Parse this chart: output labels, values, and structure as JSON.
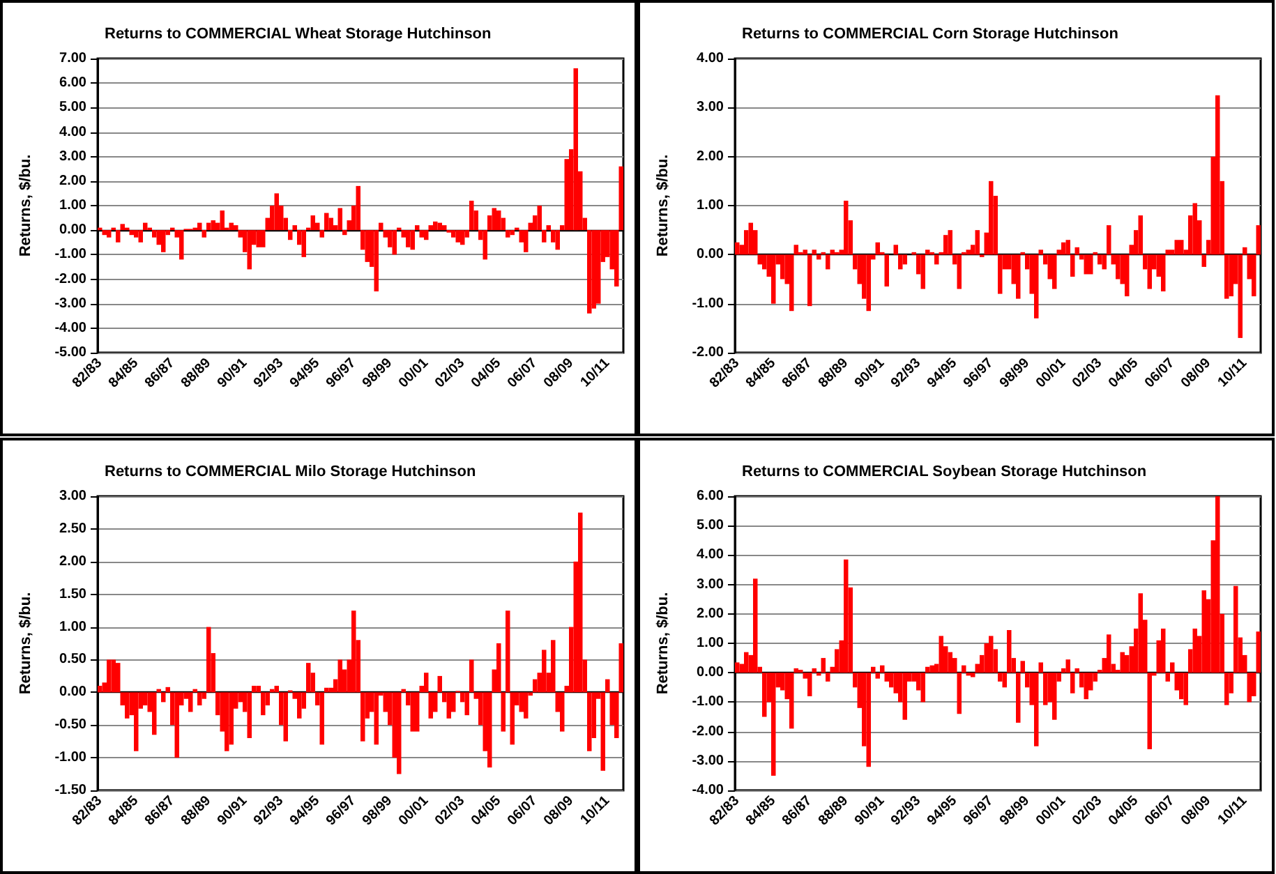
{
  "chart_data": [
    {
      "type": "bar",
      "title": "Returns to COMMERCIAL Wheat Storage Hutchinson",
      "ylabel": "Returns, $/bu.",
      "grid": "y",
      "categories": [
        "82/83",
        null,
        null,
        null,
        null,
        null,
        null,
        null,
        "84/85",
        null,
        null,
        null,
        null,
        null,
        null,
        null,
        "86/87",
        null,
        null,
        null,
        null,
        null,
        null,
        null,
        "88/89",
        null,
        null,
        null,
        null,
        null,
        null,
        null,
        "90/91",
        null,
        null,
        null,
        null,
        null,
        null,
        null,
        "92/93",
        null,
        null,
        null,
        null,
        null,
        null,
        null,
        "94/95",
        null,
        null,
        null,
        null,
        null,
        null,
        null,
        "96/97",
        null,
        null,
        null,
        null,
        null,
        null,
        null,
        "98/99",
        null,
        null,
        null,
        null,
        null,
        null,
        null,
        "00/01",
        null,
        null,
        null,
        null,
        null,
        null,
        null,
        "02/03",
        null,
        null,
        null,
        null,
        null,
        null,
        null,
        "04/05",
        null,
        null,
        null,
        null,
        null,
        null,
        null,
        "06/07",
        null,
        null,
        null,
        null,
        null,
        null,
        null,
        "08/09",
        null,
        null,
        null,
        null,
        null,
        null,
        null,
        "10/11",
        null,
        null,
        null
      ],
      "series": [
        {
          "color": "#ff0000",
          "values": [
            0.1,
            -0.2,
            -0.3,
            0.1,
            -0.5,
            0.25,
            0.1,
            -0.2,
            -0.3,
            -0.5,
            0.3,
            0.1,
            -0.3,
            -0.6,
            -0.9,
            -0.2,
            0.1,
            -0.3,
            -1.2,
            0.05,
            0.05,
            0.1,
            0.3,
            -0.3,
            0.3,
            0.4,
            0.3,
            0.8,
            0.1,
            0.3,
            0.2,
            -0.3,
            -0.9,
            -1.6,
            -0.6,
            -0.7,
            -0.7,
            0.5,
            1.0,
            1.5,
            1.0,
            0.5,
            -0.4,
            0.2,
            -0.6,
            -1.1,
            0.1,
            0.6,
            0.3,
            -0.3,
            0.7,
            0.5,
            0.2,
            0.9,
            -0.2,
            0.4,
            1.0,
            1.8,
            -0.8,
            -1.3,
            -1.5,
            -2.5,
            0.3,
            -0.3,
            -0.7,
            -1.0,
            0.1,
            -0.3,
            -0.7,
            -0.8,
            0.2,
            -0.3,
            -0.4,
            0.2,
            0.35,
            0.3,
            0.2,
            -0.1,
            -0.3,
            -0.5,
            -0.6,
            -0.3,
            1.2,
            0.8,
            -0.4,
            -1.2,
            0.6,
            0.9,
            0.8,
            0.5,
            -0.3,
            -0.2,
            0.1,
            -0.5,
            -0.9,
            0.3,
            0.6,
            1.0,
            -0.5,
            0.2,
            -0.5,
            -0.8,
            0.2,
            2.9,
            3.3,
            6.6,
            2.4,
            0.5,
            -3.4,
            -3.2,
            -3.0,
            -1.3,
            -1.1,
            -1.6,
            -2.3,
            2.6
          ]
        }
      ],
      "ylim": [
        -5,
        7
      ],
      "yticks": [
        {
          "value": -5,
          "label": "-5.00"
        },
        {
          "value": -4,
          "label": "-4.00"
        },
        {
          "value": -3,
          "label": "-3.00"
        },
        {
          "value": -2,
          "label": "-2.00"
        },
        {
          "value": -1,
          "label": "-1.00"
        },
        {
          "value": 0,
          "label": "0.00"
        },
        {
          "value": 1,
          "label": "1.00"
        },
        {
          "value": 2,
          "label": "2.00"
        },
        {
          "value": 3,
          "label": "3.00"
        },
        {
          "value": 4,
          "label": "4.00"
        },
        {
          "value": 5,
          "label": "5.00"
        },
        {
          "value": 6,
          "label": "6.00"
        },
        {
          "value": 7,
          "label": "7.00"
        }
      ]
    },
    {
      "type": "bar",
      "title": "Returns to COMMERCIAL Corn Storage Hutchinson",
      "ylabel": "Returns, $/bu.",
      "grid": "y",
      "categories": [
        "82/83",
        null,
        null,
        null,
        null,
        null,
        null,
        null,
        "84/85",
        null,
        null,
        null,
        null,
        null,
        null,
        null,
        "86/87",
        null,
        null,
        null,
        null,
        null,
        null,
        null,
        "88/89",
        null,
        null,
        null,
        null,
        null,
        null,
        null,
        "90/91",
        null,
        null,
        null,
        null,
        null,
        null,
        null,
        "92/93",
        null,
        null,
        null,
        null,
        null,
        null,
        null,
        "94/95",
        null,
        null,
        null,
        null,
        null,
        null,
        null,
        "96/97",
        null,
        null,
        null,
        null,
        null,
        null,
        null,
        "98/99",
        null,
        null,
        null,
        null,
        null,
        null,
        null,
        "00/01",
        null,
        null,
        null,
        null,
        null,
        null,
        null,
        "02/03",
        null,
        null,
        null,
        null,
        null,
        null,
        null,
        "04/05",
        null,
        null,
        null,
        null,
        null,
        null,
        null,
        "06/07",
        null,
        null,
        null,
        null,
        null,
        null,
        null,
        "08/09",
        null,
        null,
        null,
        null,
        null,
        null,
        null,
        "10/11",
        null,
        null,
        null
      ],
      "series": [
        {
          "color": "#ff0000",
          "values": [
            0.25,
            0.2,
            0.5,
            0.65,
            0.5,
            -0.2,
            -0.3,
            -0.45,
            -1.0,
            -0.2,
            -0.5,
            -0.6,
            -1.15,
            0.2,
            0.05,
            0.1,
            -1.05,
            0.1,
            -0.1,
            0.05,
            -0.3,
            0.1,
            0.05,
            0.1,
            1.1,
            0.7,
            -0.3,
            -0.6,
            -0.9,
            -1.15,
            -0.1,
            0.25,
            0.05,
            -0.65,
            0.0,
            0.2,
            -0.3,
            -0.2,
            0.0,
            0.05,
            -0.4,
            -0.7,
            0.1,
            0.05,
            -0.2,
            0.05,
            0.4,
            0.5,
            -0.2,
            -0.7,
            0.05,
            0.1,
            0.2,
            0.5,
            -0.05,
            0.45,
            1.5,
            1.2,
            -0.8,
            -0.3,
            -0.3,
            -0.6,
            -0.9,
            0.05,
            -0.3,
            -0.8,
            -1.3,
            0.1,
            -0.2,
            -0.5,
            -0.7,
            0.1,
            0.25,
            0.3,
            -0.45,
            0.15,
            -0.1,
            -0.4,
            -0.4,
            0.05,
            -0.2,
            -0.3,
            0.6,
            -0.2,
            -0.5,
            -0.6,
            -0.85,
            0.2,
            0.5,
            0.8,
            -0.3,
            -0.7,
            -0.3,
            -0.45,
            -0.75,
            0.1,
            0.1,
            0.3,
            0.3,
            0.1,
            0.8,
            1.05,
            0.7,
            -0.25,
            0.3,
            2.0,
            3.25,
            1.5,
            -0.9,
            -0.85,
            -0.6,
            -1.7,
            0.15,
            -0.5,
            -0.85,
            0.6
          ]
        }
      ],
      "ylim": [
        -2,
        4
      ],
      "yticks": [
        {
          "value": -2,
          "label": "-2.00"
        },
        {
          "value": -1,
          "label": "-1.00"
        },
        {
          "value": 0,
          "label": "0.00"
        },
        {
          "value": 1,
          "label": "1.00"
        },
        {
          "value": 2,
          "label": "2.00"
        },
        {
          "value": 3,
          "label": "3.00"
        },
        {
          "value": 4,
          "label": "4.00"
        }
      ]
    },
    {
      "type": "bar",
      "title": "Returns to COMMERCIAL Milo Storage Hutchinson",
      "ylabel": "Returns, $/bu.",
      "grid": "y",
      "categories": [
        "82/83",
        null,
        null,
        null,
        null,
        null,
        null,
        null,
        "84/85",
        null,
        null,
        null,
        null,
        null,
        null,
        null,
        "86/87",
        null,
        null,
        null,
        null,
        null,
        null,
        null,
        "88/89",
        null,
        null,
        null,
        null,
        null,
        null,
        null,
        "90/91",
        null,
        null,
        null,
        null,
        null,
        null,
        null,
        "92/93",
        null,
        null,
        null,
        null,
        null,
        null,
        null,
        "94/95",
        null,
        null,
        null,
        null,
        null,
        null,
        null,
        "96/97",
        null,
        null,
        null,
        null,
        null,
        null,
        null,
        "98/99",
        null,
        null,
        null,
        null,
        null,
        null,
        null,
        "00/01",
        null,
        null,
        null,
        null,
        null,
        null,
        null,
        "02/03",
        null,
        null,
        null,
        null,
        null,
        null,
        null,
        "04/05",
        null,
        null,
        null,
        null,
        null,
        null,
        null,
        "06/07",
        null,
        null,
        null,
        null,
        null,
        null,
        null,
        "08/09",
        null,
        null,
        null,
        null,
        null,
        null,
        null,
        "10/11",
        null,
        null,
        null
      ],
      "series": [
        {
          "color": "#ff0000",
          "values": [
            0.1,
            0.15,
            0.5,
            0.5,
            0.45,
            -0.2,
            -0.4,
            -0.35,
            -0.9,
            -0.25,
            -0.2,
            -0.3,
            -0.65,
            0.05,
            -0.15,
            0.08,
            -0.5,
            -1.0,
            -0.2,
            -0.1,
            -0.3,
            0.05,
            -0.2,
            -0.1,
            1.0,
            0.6,
            -0.35,
            -0.6,
            -0.9,
            -0.8,
            -0.25,
            -0.15,
            -0.3,
            -0.7,
            0.1,
            0.1,
            -0.35,
            -0.2,
            0.05,
            0.1,
            -0.5,
            -0.75,
            0.03,
            -0.1,
            -0.4,
            -0.25,
            0.45,
            0.3,
            -0.2,
            -0.8,
            0.07,
            0.07,
            0.2,
            0.5,
            0.35,
            0.5,
            1.25,
            0.8,
            -0.75,
            -0.4,
            -0.3,
            -0.8,
            -0.05,
            -0.3,
            -0.5,
            -1.0,
            -1.25,
            0.05,
            -0.2,
            -0.6,
            -0.6,
            0.1,
            0.3,
            -0.4,
            -0.3,
            0.25,
            -0.15,
            -0.4,
            -0.3,
            0.02,
            -0.15,
            -0.35,
            0.5,
            -0.1,
            -0.5,
            -0.9,
            -1.15,
            0.35,
            0.75,
            -0.6,
            1.25,
            -0.8,
            -0.2,
            -0.3,
            -0.4,
            -0.05,
            0.2,
            0.3,
            0.65,
            0.3,
            0.8,
            -0.3,
            -0.6,
            0.1,
            1.0,
            2.0,
            2.75,
            0.5,
            -0.9,
            -0.7,
            -0.1,
            -1.2,
            0.2,
            -0.5,
            -0.7,
            0.75
          ]
        }
      ],
      "ylim": [
        -1.5,
        3
      ],
      "yticks": [
        {
          "value": -1.5,
          "label": "-1.50"
        },
        {
          "value": -1,
          "label": "-1.00"
        },
        {
          "value": -0.5,
          "label": "-0.50"
        },
        {
          "value": 0,
          "label": "0.00"
        },
        {
          "value": 0.5,
          "label": "0.50"
        },
        {
          "value": 1,
          "label": "1.00"
        },
        {
          "value": 1.5,
          "label": "1.50"
        },
        {
          "value": 2,
          "label": "2.00"
        },
        {
          "value": 2.5,
          "label": "2.50"
        },
        {
          "value": 3,
          "label": "3.00"
        }
      ]
    },
    {
      "type": "bar",
      "title": "Returns to COMMERCIAL Soybean Storage Hutchinson",
      "ylabel": "Returns, $/bu.",
      "grid": "y",
      "categories": [
        "82/83",
        null,
        null,
        null,
        null,
        null,
        null,
        null,
        "84/85",
        null,
        null,
        null,
        null,
        null,
        null,
        null,
        "86/87",
        null,
        null,
        null,
        null,
        null,
        null,
        null,
        "88/89",
        null,
        null,
        null,
        null,
        null,
        null,
        null,
        "90/91",
        null,
        null,
        null,
        null,
        null,
        null,
        null,
        "92/93",
        null,
        null,
        null,
        null,
        null,
        null,
        null,
        "94/95",
        null,
        null,
        null,
        null,
        null,
        null,
        null,
        "96/97",
        null,
        null,
        null,
        null,
        null,
        null,
        null,
        "98/99",
        null,
        null,
        null,
        null,
        null,
        null,
        null,
        "00/01",
        null,
        null,
        null,
        null,
        null,
        null,
        null,
        "02/03",
        null,
        null,
        null,
        null,
        null,
        null,
        null,
        "04/05",
        null,
        null,
        null,
        null,
        null,
        null,
        null,
        "06/07",
        null,
        null,
        null,
        null,
        null,
        null,
        null,
        "08/09",
        null,
        null,
        null,
        null,
        null,
        null,
        null,
        "10/11",
        null,
        null,
        null
      ],
      "series": [
        {
          "color": "#ff0000",
          "values": [
            0.35,
            0.3,
            0.7,
            0.6,
            3.2,
            0.2,
            -1.5,
            -1.0,
            -3.5,
            -0.5,
            -0.6,
            -0.9,
            -1.9,
            0.15,
            0.1,
            -0.2,
            -0.8,
            0.15,
            -0.1,
            0.5,
            -0.3,
            0.2,
            0.8,
            1.1,
            3.85,
            2.9,
            -0.5,
            -1.2,
            -2.5,
            -3.2,
            0.2,
            -0.2,
            0.25,
            -0.3,
            -0.5,
            -0.7,
            -1.0,
            -1.6,
            -0.3,
            -0.3,
            -0.6,
            -1.0,
            0.2,
            0.25,
            0.3,
            1.25,
            0.9,
            0.7,
            0.5,
            -1.4,
            0.25,
            -0.1,
            -0.15,
            0.3,
            0.6,
            1.0,
            1.25,
            0.8,
            -0.3,
            -0.5,
            1.45,
            0.5,
            -1.7,
            0.4,
            -0.5,
            -1.1,
            -2.5,
            0.35,
            -1.1,
            -1.0,
            -1.6,
            -0.3,
            0.15,
            0.45,
            -0.7,
            0.15,
            -0.5,
            -0.9,
            -0.6,
            -0.3,
            0.1,
            0.5,
            1.3,
            0.3,
            0.1,
            0.7,
            0.6,
            0.9,
            1.5,
            2.7,
            1.8,
            -2.6,
            -0.1,
            1.1,
            1.5,
            -0.3,
            0.35,
            -0.6,
            -0.9,
            -1.1,
            0.8,
            1.5,
            1.25,
            2.8,
            2.5,
            4.5,
            6.0,
            2.0,
            -1.1,
            -0.7,
            2.95,
            1.2,
            0.6,
            -1.0,
            -0.8,
            1.4
          ]
        }
      ],
      "ylim": [
        -4,
        6
      ],
      "yticks": [
        {
          "value": -4,
          "label": "-4.00"
        },
        {
          "value": -3,
          "label": "-3.00"
        },
        {
          "value": -2,
          "label": "-2.00"
        },
        {
          "value": -1,
          "label": "-1.00"
        },
        {
          "value": 0,
          "label": "0.00"
        },
        {
          "value": 1,
          "label": "1.00"
        },
        {
          "value": 2,
          "label": "2.00"
        },
        {
          "value": 3,
          "label": "3.00"
        },
        {
          "value": 4,
          "label": "4.00"
        },
        {
          "value": 5,
          "label": "5.00"
        },
        {
          "value": 6,
          "label": "6.00"
        }
      ]
    }
  ]
}
